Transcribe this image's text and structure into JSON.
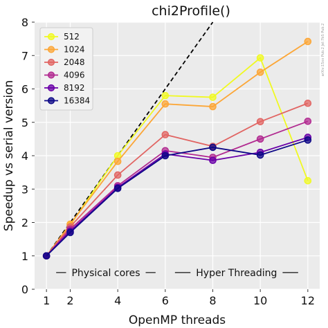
{
  "chart_data": {
    "type": "line",
    "title": "chi2Profile()",
    "xlabel": "OpenMP threads",
    "ylabel": "Speedup vs serial version",
    "x": [
      1,
      2,
      4,
      6,
      8,
      10,
      12
    ],
    "xticks": [
      "1",
      "2",
      "4",
      "6",
      "8",
      "10",
      "12"
    ],
    "yticks": [
      "0",
      "1",
      "2",
      "3",
      "4",
      "5",
      "6",
      "7",
      "8"
    ],
    "xlim": [
      0.5,
      12.5
    ],
    "ylim": [
      0,
      8
    ],
    "grid": true,
    "legend_position": "top-left",
    "ideal_line": {
      "style": "dashed",
      "color": "#000000",
      "x": [
        1,
        8
      ],
      "y": [
        1,
        8
      ]
    },
    "series": [
      {
        "name": "512",
        "color": "#f0f921",
        "values": [
          1.0,
          1.92,
          4.0,
          5.8,
          5.75,
          6.93,
          3.25
        ]
      },
      {
        "name": "1024",
        "color": "#fca636",
        "values": [
          1.0,
          1.95,
          3.83,
          5.55,
          5.47,
          6.5,
          7.42
        ]
      },
      {
        "name": "2048",
        "color": "#e16462",
        "values": [
          1.0,
          1.87,
          3.42,
          4.63,
          4.28,
          5.02,
          5.57
        ]
      },
      {
        "name": "4096",
        "color": "#b12a90",
        "values": [
          1.0,
          1.8,
          3.1,
          4.15,
          3.95,
          4.5,
          5.03
        ]
      },
      {
        "name": "8192",
        "color": "#6a00a8",
        "values": [
          1.0,
          1.74,
          3.05,
          4.05,
          3.86,
          4.1,
          4.55
        ]
      },
      {
        "name": "16384",
        "color": "#0d0887",
        "values": [
          1.0,
          1.7,
          3.02,
          4.0,
          4.25,
          4.02,
          4.47
        ]
      }
    ],
    "annotations": [
      {
        "text": "Physical cores",
        "x_from": 1,
        "x_to": 6,
        "y": 0.5
      },
      {
        "text": "Hyper Threading",
        "x_from": 6,
        "x_to": 12,
        "y": 0.5
      }
    ]
  },
  "watermark": "arXiv:15xx Pub.2 Jel:7bS Pub.2"
}
